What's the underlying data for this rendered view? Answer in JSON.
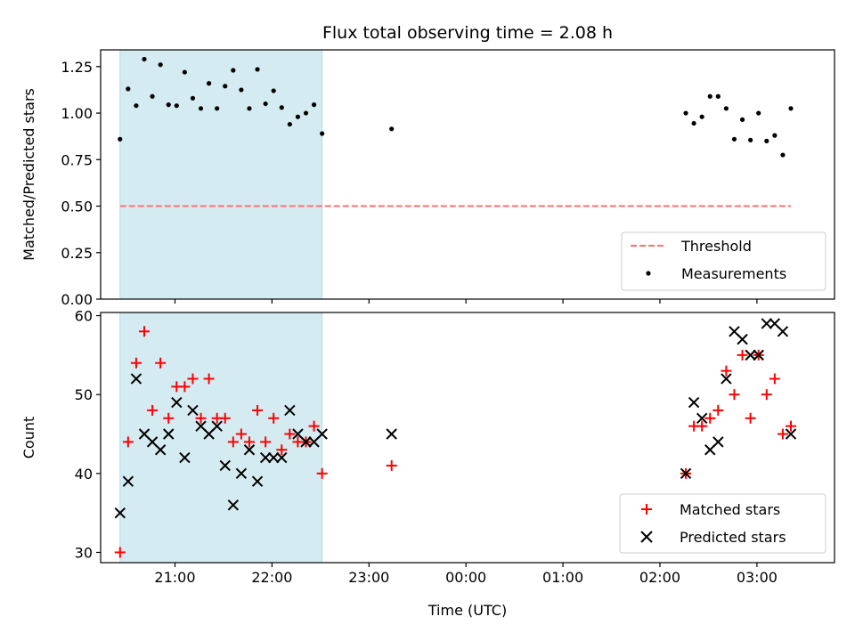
{
  "chart_data": [
    {
      "type": "scatter",
      "title": "Flux total observing time = 2.08 h",
      "xlabel": "",
      "ylabel": "Matched/Predicted stars",
      "xlim": [
        "20:14",
        "03:48"
      ],
      "ylim": [
        0,
        1.34
      ],
      "yticks": [
        "0.00",
        "0.25",
        "0.50",
        "0.75",
        "1.00",
        "1.25"
      ],
      "shaded_span": [
        "20:26",
        "22:31"
      ],
      "shaded_color": "#d4ebf1",
      "threshold": {
        "name": "Threshold",
        "y": 0.5,
        "x_range": [
          "20:26",
          "03:21"
        ],
        "color": "#ff7070"
      },
      "series": [
        {
          "name": "Measurements",
          "color": "#000000",
          "x": [
            "20:26",
            "20:31",
            "20:36",
            "20:41",
            "20:46",
            "20:51",
            "20:56",
            "21:01",
            "21:06",
            "21:11",
            "21:16",
            "21:21",
            "21:26",
            "21:31",
            "21:36",
            "21:41",
            "21:46",
            "21:51",
            "21:56",
            "22:01",
            "22:06",
            "22:11",
            "22:16",
            "22:21",
            "22:26",
            "22:31",
            "23:14",
            "02:16",
            "02:21",
            "02:26",
            "02:31",
            "02:36",
            "02:41",
            "02:46",
            "02:51",
            "02:56",
            "03:01",
            "03:06",
            "03:11",
            "03:16",
            "03:21"
          ],
          "y": [
            0.86,
            1.13,
            1.04,
            1.29,
            1.09,
            1.26,
            1.045,
            1.04,
            1.22,
            1.08,
            1.025,
            1.16,
            1.025,
            1.145,
            1.23,
            1.125,
            1.025,
            1.235,
            1.05,
            1.12,
            1.03,
            0.94,
            0.98,
            1.0,
            1.045,
            0.89,
            0.915,
            1.0,
            0.945,
            0.98,
            1.09,
            1.09,
            1.025,
            0.86,
            0.965,
            0.855,
            1.0,
            0.85,
            0.88,
            0.775,
            1.025
          ]
        }
      ]
    },
    {
      "type": "scatter",
      "title": "",
      "xlabel": "Time (UTC)",
      "ylabel": "Count",
      "xlim": [
        "20:14",
        "03:48"
      ],
      "ylim": [
        28.7,
        60.4
      ],
      "yticks": [
        "30",
        "40",
        "50",
        "60"
      ],
      "xticks": [
        "21:00",
        "22:00",
        "23:00",
        "00:00",
        "01:00",
        "02:00",
        "03:00"
      ],
      "shaded_span": [
        "20:26",
        "22:31"
      ],
      "shaded_color": "#d4ebf1",
      "series": [
        {
          "name": "Matched stars",
          "marker": "+",
          "color": "#ff0000",
          "x": [
            "20:26",
            "20:31",
            "20:36",
            "20:41",
            "20:46",
            "20:51",
            "20:56",
            "21:01",
            "21:06",
            "21:11",
            "21:16",
            "21:21",
            "21:26",
            "21:31",
            "21:36",
            "21:41",
            "21:46",
            "21:51",
            "21:56",
            "22:01",
            "22:06",
            "22:11",
            "22:16",
            "22:21",
            "22:26",
            "22:31",
            "23:14",
            "02:16",
            "02:21",
            "02:26",
            "02:31",
            "02:36",
            "02:41",
            "02:46",
            "02:51",
            "02:56",
            "03:01",
            "03:06",
            "03:11",
            "03:16",
            "03:21"
          ],
          "y": [
            30,
            44,
            54,
            58,
            48,
            54,
            47,
            51,
            51,
            52,
            47,
            52,
            47,
            47,
            44,
            45,
            44,
            48,
            44,
            47,
            43,
            45,
            44,
            44,
            46,
            40,
            41,
            40,
            46,
            46,
            47,
            48,
            53,
            50,
            55,
            47,
            55,
            50,
            52,
            45,
            46
          ]
        },
        {
          "name": "Predicted stars",
          "marker": "x",
          "color": "#000000",
          "x": [
            "20:26",
            "20:31",
            "20:36",
            "20:41",
            "20:46",
            "20:51",
            "20:56",
            "21:01",
            "21:06",
            "21:11",
            "21:16",
            "21:21",
            "21:26",
            "21:31",
            "21:36",
            "21:41",
            "21:46",
            "21:51",
            "21:56",
            "22:01",
            "22:06",
            "22:11",
            "22:16",
            "22:21",
            "22:26",
            "22:31",
            "23:14",
            "02:16",
            "02:21",
            "02:26",
            "02:31",
            "02:36",
            "02:41",
            "02:46",
            "02:51",
            "02:56",
            "03:01",
            "03:06",
            "03:11",
            "03:16",
            "03:21"
          ],
          "y": [
            35,
            39,
            52,
            45,
            44,
            43,
            45,
            49,
            42,
            48,
            46,
            45,
            46,
            41,
            36,
            40,
            43,
            39,
            42,
            42,
            42,
            48,
            45,
            44,
            44,
            45,
            45,
            40,
            49,
            47,
            43,
            44,
            52,
            58,
            57,
            55,
            55,
            59,
            59,
            58,
            45
          ]
        }
      ],
      "legend": "lower right"
    }
  ]
}
